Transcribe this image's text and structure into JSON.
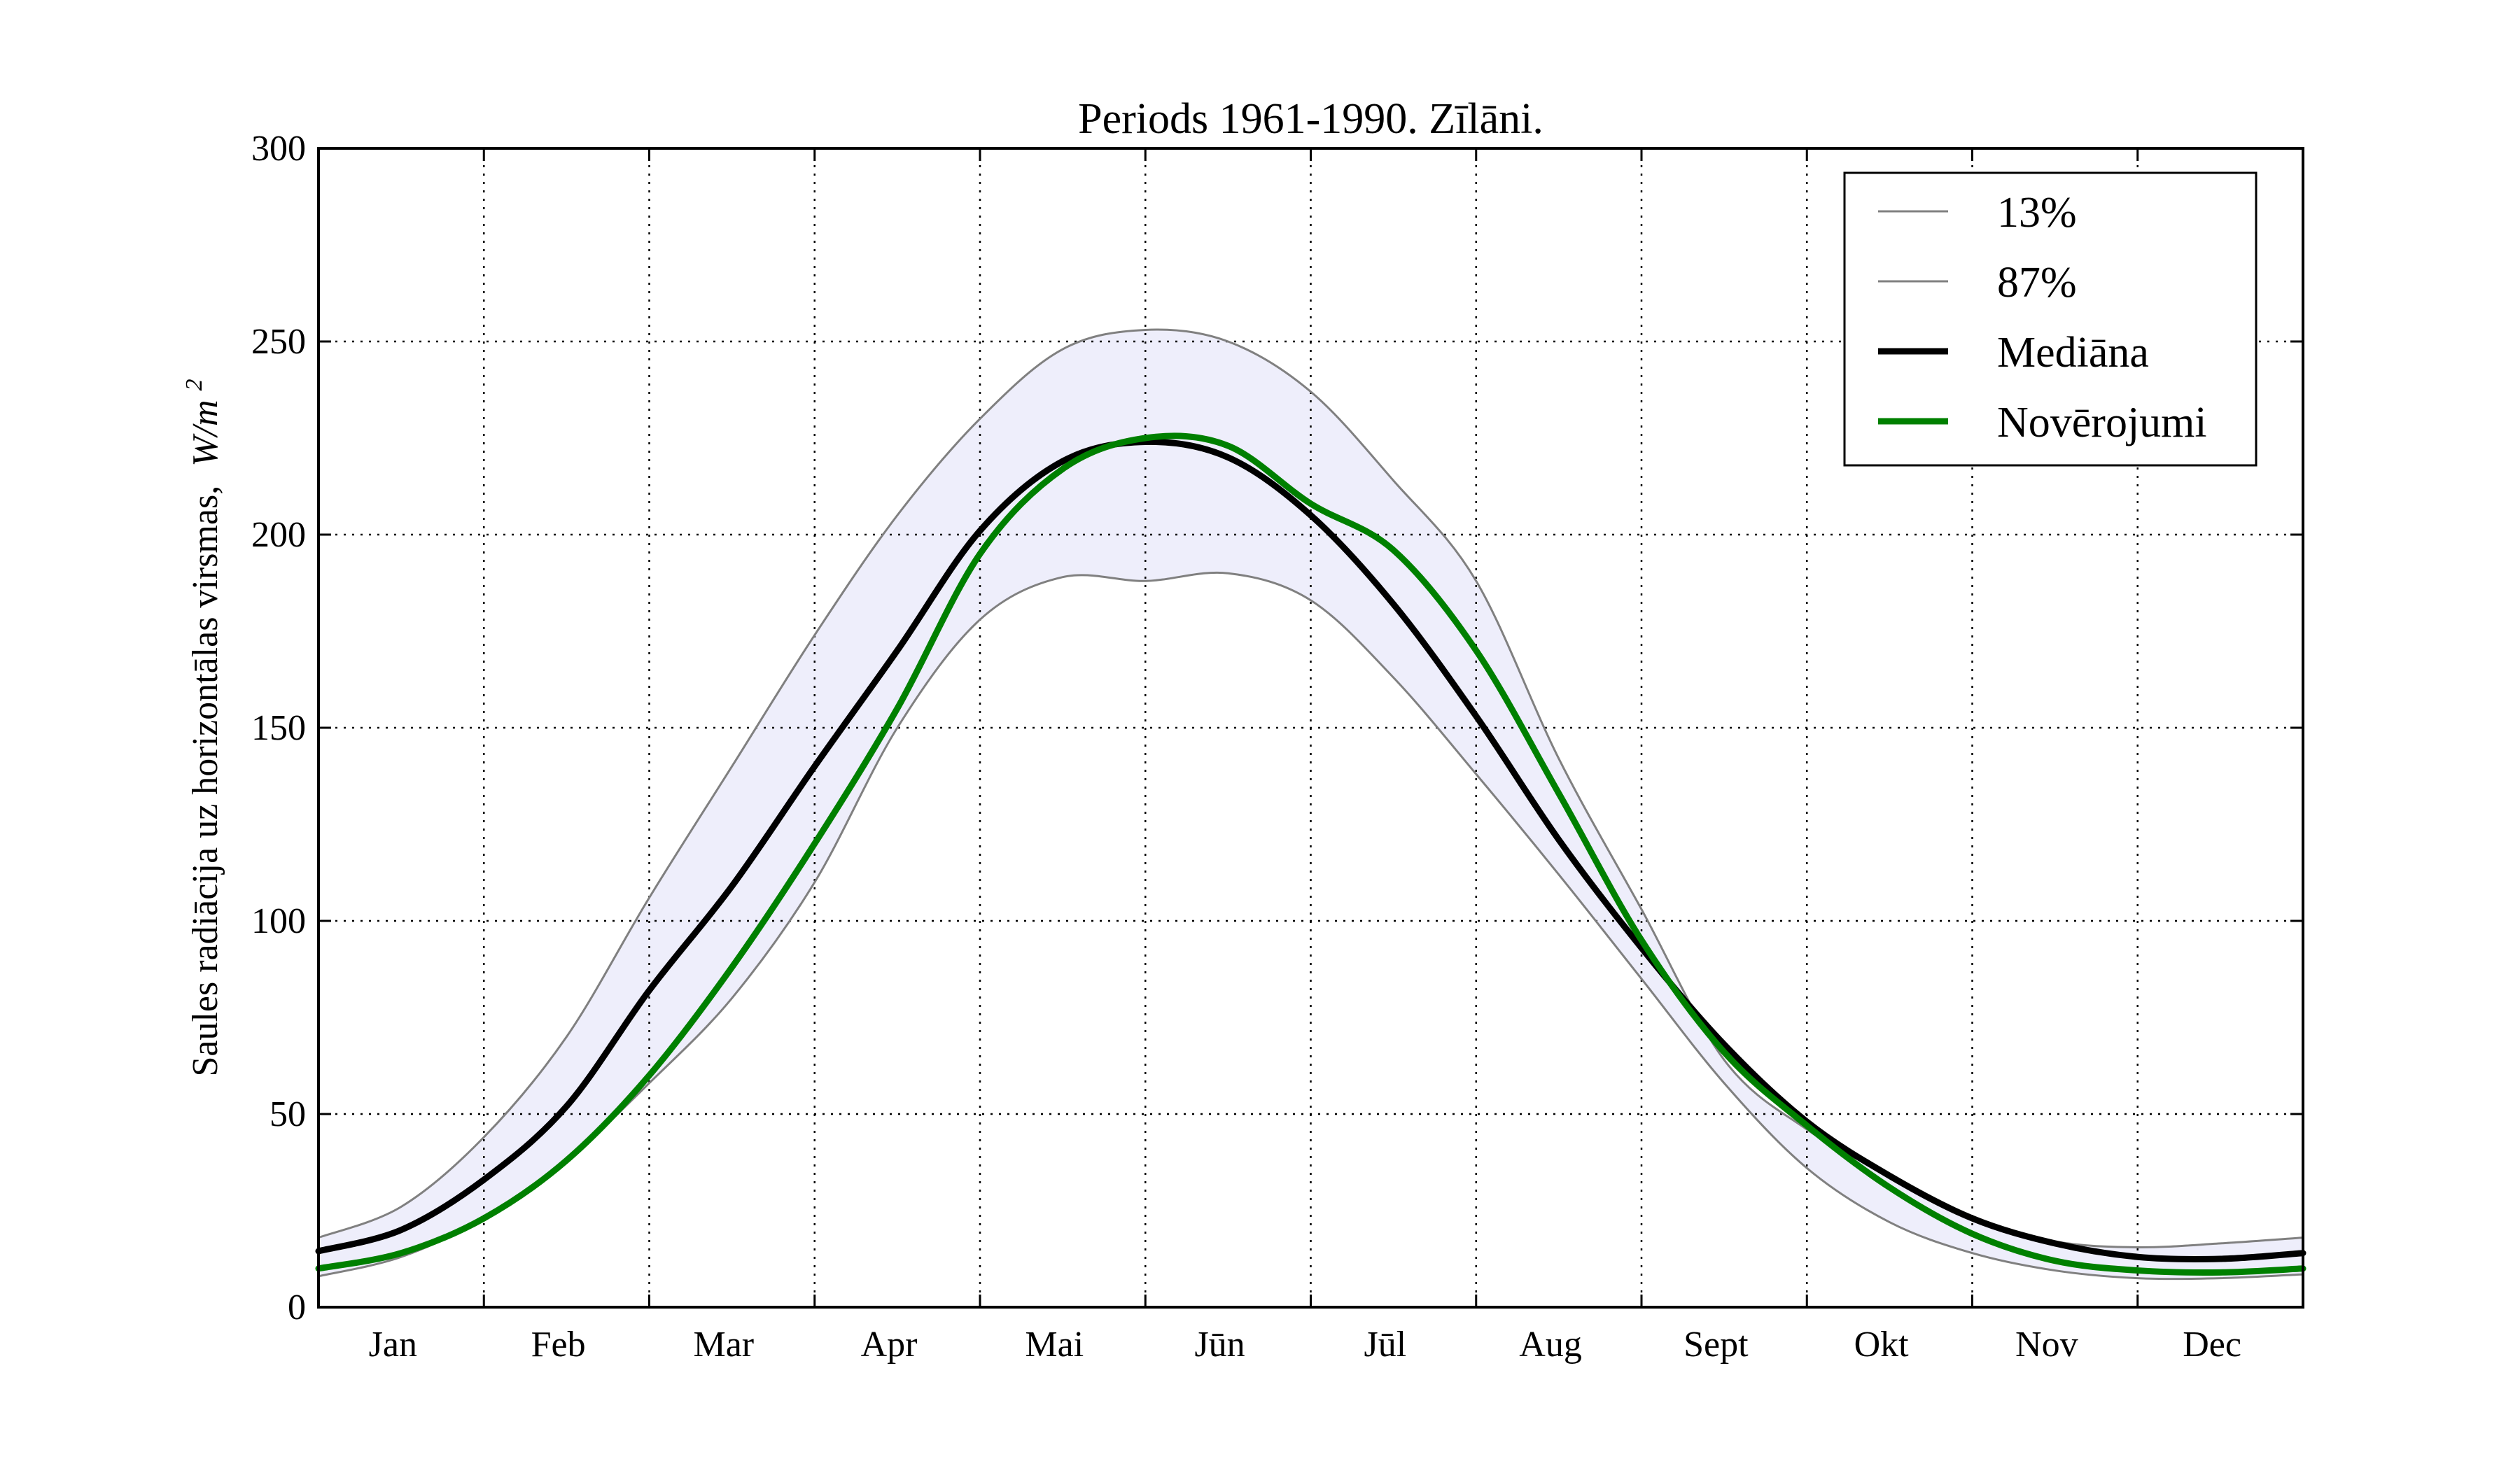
{
  "chart_data": {
    "type": "line",
    "title": "Periods 1961-1990. Zīlāni.",
    "ylabel": "Saules radiācija uz horizontālas virsmas,",
    "ylabel_unit": "W/m",
    "ylabel_unit_sup": "2",
    "ylim": [
      0,
      300
    ],
    "yticks": [
      "0",
      "50",
      "100",
      "150",
      "200",
      "250",
      "300"
    ],
    "months": [
      "Jan",
      "Feb",
      "Mar",
      "Apr",
      "Mai",
      "Jūn",
      "Jūl",
      "Aug",
      "Sept",
      "Okt",
      "Nov",
      "Dec"
    ],
    "grid": true,
    "legend_position": "top-right",
    "band_color": "#eeeefb",
    "x": [
      0,
      0.5,
      1.0,
      1.5,
      2.0,
      2.5,
      3.0,
      3.5,
      4.0,
      4.5,
      5.0,
      5.5,
      6.0,
      6.5,
      7.0,
      7.5,
      8.0,
      8.5,
      9.0,
      9.5,
      10.0,
      10.5,
      11.0,
      11.5,
      12.0
    ],
    "series": [
      {
        "name": "13%",
        "color": "#808080",
        "width": 3,
        "values": [
          8,
          13,
          23,
          38,
          58,
          80,
          110,
          150,
          178,
          189,
          188,
          190,
          183,
          163,
          138,
          112,
          85,
          58,
          36,
          22,
          14,
          9.5,
          7.5,
          7.5,
          8.5
        ]
      },
      {
        "name": "87%",
        "color": "#808080",
        "width": 3,
        "values": [
          18,
          26,
          44,
          70,
          106,
          140,
          174,
          205,
          230,
          248,
          253,
          250,
          237,
          214,
          188,
          142,
          103,
          64,
          46,
          34,
          23,
          17,
          15.5,
          16.5,
          18
        ]
      },
      {
        "name": "Mediāna",
        "color": "#000000",
        "width": 9,
        "values": [
          14.5,
          20,
          33,
          52,
          82,
          109,
          140,
          170,
          201,
          219,
          224,
          220,
          205,
          182,
          153,
          121,
          93,
          68,
          48,
          34,
          23,
          16.5,
          13,
          12.5,
          14
        ]
      },
      {
        "name": "Novērojumi",
        "color": "#008000",
        "width": 9,
        "values": [
          10,
          14,
          23,
          38,
          60,
          88,
          120,
          155,
          195,
          217,
          225,
          223,
          208,
          196,
          170,
          133,
          95,
          66,
          47,
          31,
          19,
          12,
          9.5,
          9,
          10
        ]
      }
    ],
    "band": {
      "lower": "13%",
      "upper": "87%"
    }
  }
}
